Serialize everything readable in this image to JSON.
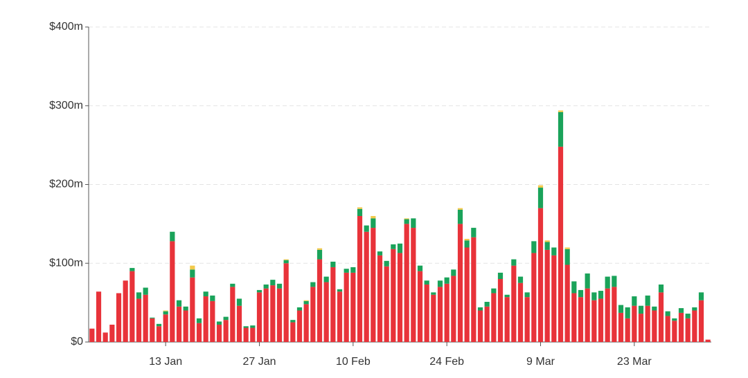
{
  "chart_data": {
    "type": "stacked_bar",
    "categories": [
      null,
      null,
      null,
      null,
      null,
      null,
      null,
      null,
      null,
      null,
      null,
      "13 Jan",
      null,
      null,
      null,
      null,
      null,
      null,
      null,
      null,
      null,
      null,
      null,
      null,
      null,
      "27 Jan",
      null,
      null,
      null,
      null,
      null,
      null,
      null,
      null,
      null,
      null,
      null,
      null,
      null,
      "10 Feb",
      null,
      null,
      null,
      null,
      null,
      null,
      null,
      null,
      null,
      null,
      null,
      null,
      null,
      "24 Feb",
      null,
      null,
      null,
      null,
      null,
      null,
      null,
      null,
      null,
      null,
      null,
      null,
      null,
      "9 Mar",
      null,
      null,
      null,
      null,
      null,
      null,
      null,
      null,
      null,
      null,
      null,
      null,
      null,
      "23 Mar",
      null,
      null,
      null,
      null,
      null,
      null,
      null,
      null,
      null,
      null,
      null
    ],
    "series": [
      {
        "color": "#e8333a",
        "values": [
          17,
          64,
          12,
          22,
          62,
          78,
          90,
          55,
          60,
          30,
          20,
          35,
          128,
          45,
          40,
          82,
          24,
          58,
          52,
          22,
          28,
          70,
          46,
          18,
          18,
          63,
          68,
          72,
          68,
          100,
          25,
          40,
          48,
          70,
          105,
          76,
          95,
          64,
          88,
          88,
          160,
          140,
          145,
          110,
          96,
          118,
          113,
          150,
          145,
          90,
          73,
          60,
          70,
          74,
          84,
          150,
          120,
          133,
          40,
          45,
          62,
          80,
          57,
          97,
          75,
          57,
          113,
          170,
          117,
          110,
          248,
          98,
          62,
          57,
          68,
          53,
          55,
          68,
          70,
          37,
          30,
          46,
          36,
          46,
          40,
          63,
          33,
          27,
          37,
          30,
          40,
          53,
          3
        ]
      },
      {
        "color": "#1aa35a",
        "values": [
          0,
          0,
          0,
          0,
          0,
          0,
          4,
          8,
          9,
          1,
          3,
          4,
          12,
          8,
          5,
          10,
          6,
          6,
          7,
          4,
          4,
          4,
          9,
          2,
          3,
          3,
          5,
          7,
          6,
          4,
          3,
          4,
          4,
          6,
          12,
          7,
          7,
          3,
          5,
          7,
          9,
          8,
          12,
          5,
          7,
          6,
          12,
          6,
          12,
          7,
          5,
          3,
          8,
          8,
          8,
          18,
          9,
          12,
          4,
          6,
          6,
          8,
          3,
          8,
          8,
          6,
          15,
          26,
          10,
          10,
          44,
          20,
          15,
          9,
          19,
          10,
          10,
          15,
          14,
          10,
          14,
          12,
          10,
          13,
          5,
          10,
          6,
          3,
          6,
          6,
          4,
          10,
          0
        ]
      },
      {
        "color": "#f2c94c",
        "values": [
          0,
          0,
          0,
          0,
          0,
          0,
          0,
          0,
          0,
          0,
          0,
          1,
          0,
          0,
          0,
          5,
          0,
          0,
          0,
          0,
          0,
          0,
          0,
          0,
          0,
          0,
          0,
          0,
          0,
          1,
          0,
          0,
          1,
          0,
          2,
          0,
          0,
          0,
          0,
          0,
          2,
          0,
          3,
          0,
          0,
          0,
          0,
          1,
          0,
          0,
          0,
          0,
          0,
          0,
          0,
          2,
          2,
          0,
          0,
          0,
          0,
          0,
          0,
          0,
          0,
          0,
          0,
          3,
          2,
          0,
          2,
          2,
          0,
          0,
          0,
          0,
          0,
          0,
          0,
          0,
          0,
          0,
          0,
          0,
          0,
          0,
          0,
          0,
          0,
          0,
          0,
          0,
          0
        ]
      }
    ],
    "ylim": [
      0,
      400
    ],
    "yticks": [
      {
        "value": 0,
        "label": "$0"
      },
      {
        "value": 100,
        "label": "$100m"
      },
      {
        "value": 200,
        "label": "$200m"
      },
      {
        "value": 300,
        "label": "$300m"
      },
      {
        "value": 400,
        "label": "$400m"
      }
    ],
    "grid": true
  }
}
